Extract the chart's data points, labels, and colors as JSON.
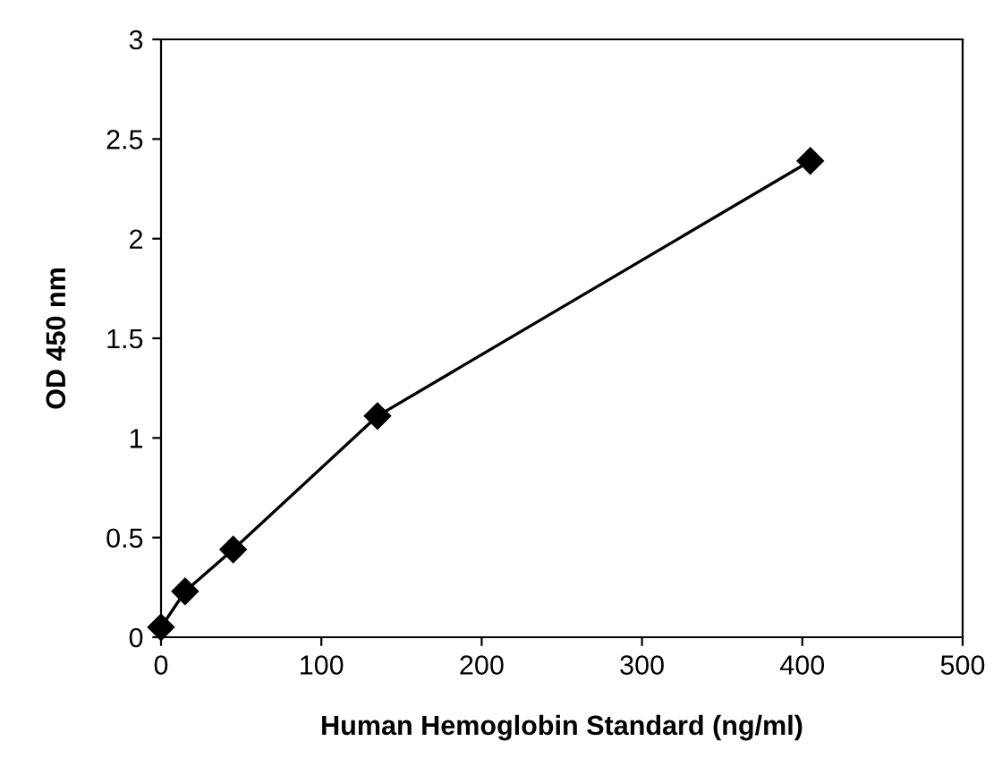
{
  "chart_data": {
    "type": "line",
    "xlabel": "Human Hemoglobin Standard (ng/ml)",
    "ylabel": "OD 450 nm",
    "x": [
      0,
      15,
      45,
      135,
      405
    ],
    "series": [
      {
        "color": "#000000",
        "values": [
          0.05,
          0.23,
          0.44,
          1.11,
          2.39
        ]
      }
    ],
    "xlim": [
      0,
      500
    ],
    "xticks": [
      0,
      100,
      200,
      300,
      400,
      500
    ],
    "ylim": [
      0,
      3
    ],
    "yticks": [
      0,
      0.5,
      1,
      1.5,
      2,
      2.5,
      3
    ],
    "marker": "diamond",
    "line_style": "solid",
    "grid": false,
    "legend": false
  }
}
